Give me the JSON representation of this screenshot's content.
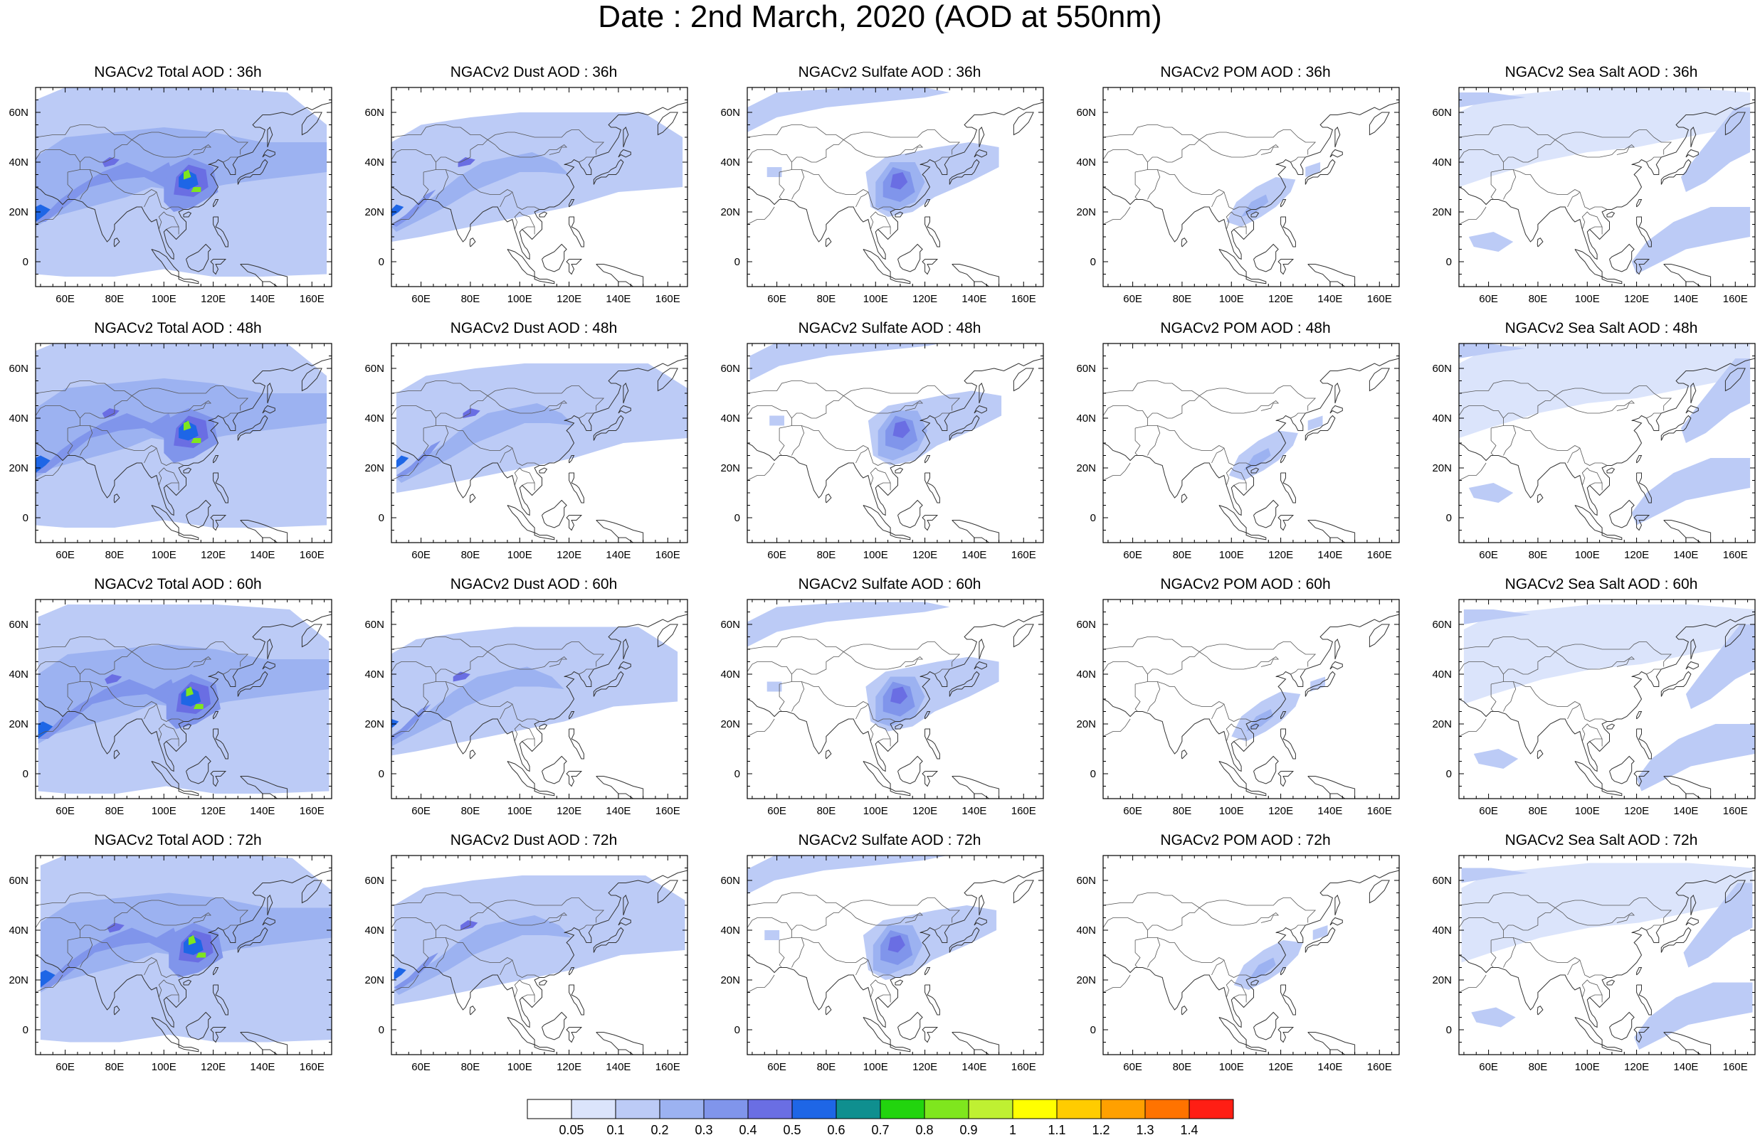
{
  "title": "Date : 2nd March, 2020 (AOD at 550nm)",
  "map": {
    "lon_range": [
      48,
      168
    ],
    "lat_range": [
      -10,
      70
    ],
    "x_ticks": [
      "60E",
      "80E",
      "100E",
      "120E",
      "140E",
      "160E"
    ],
    "x_tick_values": [
      60,
      80,
      100,
      120,
      140,
      160
    ],
    "y_ticks": [
      "0",
      "20N",
      "40N",
      "60N"
    ],
    "y_tick_values": [
      0,
      20,
      40,
      60
    ]
  },
  "panels": [
    {
      "title": "NGACv2 Total AOD : 36h",
      "species": "total",
      "hour": 36
    },
    {
      "title": "NGACv2 Dust AOD : 36h",
      "species": "dust",
      "hour": 36
    },
    {
      "title": "NGACv2 Sulfate AOD : 36h",
      "species": "sulfate",
      "hour": 36
    },
    {
      "title": "NGACv2 POM AOD : 36h",
      "species": "pom",
      "hour": 36
    },
    {
      "title": "NGACv2 Sea Salt AOD : 36h",
      "species": "seasalt",
      "hour": 36
    },
    {
      "title": "NGACv2 Total AOD : 48h",
      "species": "total",
      "hour": 48
    },
    {
      "title": "NGACv2 Dust AOD : 48h",
      "species": "dust",
      "hour": 48
    },
    {
      "title": "NGACv2 Sulfate AOD : 48h",
      "species": "sulfate",
      "hour": 48
    },
    {
      "title": "NGACv2 POM AOD : 48h",
      "species": "pom",
      "hour": 48
    },
    {
      "title": "NGACv2 Sea Salt AOD : 48h",
      "species": "seasalt",
      "hour": 48
    },
    {
      "title": "NGACv2 Total AOD : 60h",
      "species": "total",
      "hour": 60
    },
    {
      "title": "NGACv2 Dust AOD : 60h",
      "species": "dust",
      "hour": 60
    },
    {
      "title": "NGACv2 Sulfate AOD : 60h",
      "species": "sulfate",
      "hour": 60
    },
    {
      "title": "NGACv2 POM AOD : 60h",
      "species": "pom",
      "hour": 60
    },
    {
      "title": "NGACv2 Sea Salt AOD : 60h",
      "species": "seasalt",
      "hour": 60
    },
    {
      "title": "NGACv2 Total AOD : 72h",
      "species": "total",
      "hour": 72
    },
    {
      "title": "NGACv2 Dust AOD : 72h",
      "species": "dust",
      "hour": 72
    },
    {
      "title": "NGACv2 Sulfate AOD : 72h",
      "species": "sulfate",
      "hour": 72
    },
    {
      "title": "NGACv2 POM AOD : 72h",
      "species": "pom",
      "hour": 72
    },
    {
      "title": "NGACv2 Sea Salt  AOD : 72h",
      "species": "seasalt",
      "hour": 72
    }
  ],
  "colorbar": {
    "labels": [
      "0.05",
      "0.1",
      "0.2",
      "0.3",
      "0.4",
      "0.5",
      "0.6",
      "0.7",
      "0.8",
      "0.9",
      "1",
      "1.1",
      "1.2",
      "1.3",
      "1.4"
    ],
    "colors": [
      "#ffffff",
      "#dbe4fb",
      "#bccbf6",
      "#9cb2f1",
      "#8095eb",
      "#6a6ee3",
      "#1e66e6",
      "#0f8f8f",
      "#22d40e",
      "#7fe61e",
      "#bff032",
      "#ffff00",
      "#ffcc00",
      "#ffa000",
      "#ff7300",
      "#ff1e14"
    ]
  }
}
